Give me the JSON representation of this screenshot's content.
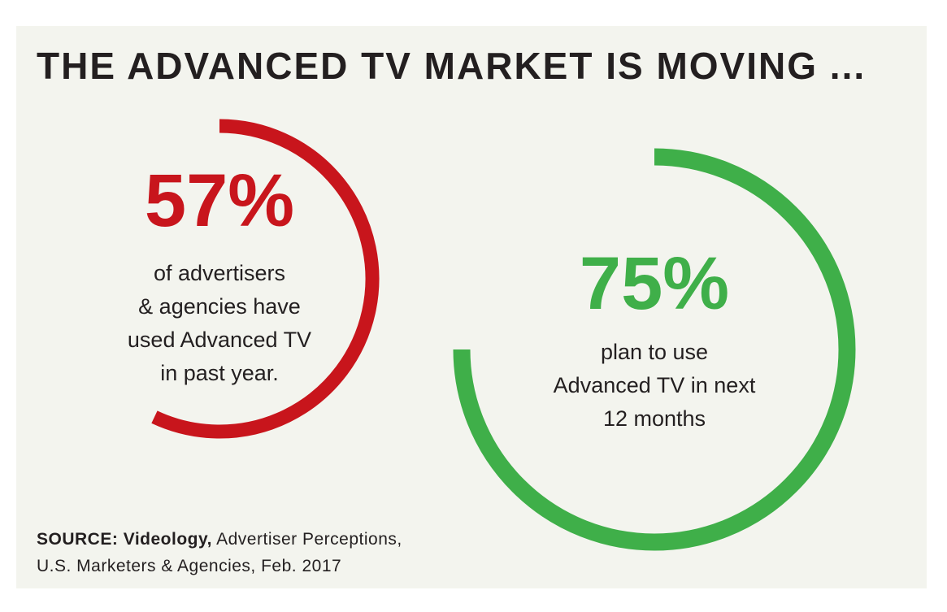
{
  "title": "THE ADVANCED TV MARKET IS MOVING ...",
  "source": {
    "label": "SOURCE:",
    "publisher": "Videology,",
    "lines": [
      "Advertiser Perceptions,",
      "U.S. Marketers & Agencies, Feb. 2017"
    ]
  },
  "chart_data": [
    {
      "type": "ring",
      "values": [
        57
      ],
      "value_labels": [
        "57%"
      ],
      "color": "#c8151c",
      "ylim": [
        0,
        100
      ],
      "caption": [
        "of advertisers",
        "& agencies have",
        "used Advanced TV",
        "in past year."
      ]
    },
    {
      "type": "ring",
      "values": [
        75
      ],
      "value_labels": [
        "75%"
      ],
      "color": "#3faf49",
      "ylim": [
        0,
        100
      ],
      "caption": [
        "plan to use",
        "Advanced TV in next",
        "12 months"
      ]
    }
  ]
}
